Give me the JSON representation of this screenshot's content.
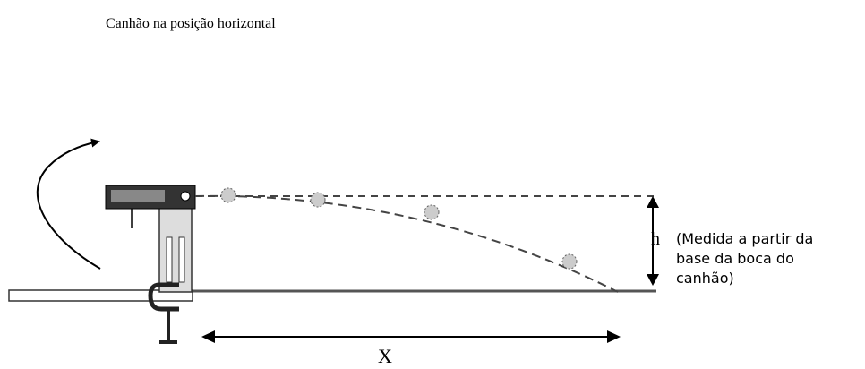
{
  "title": "Canhão na posição horizontal",
  "labels": {
    "h": "h",
    "note": [
      "(Medida a partir da",
      "base da boca do",
      "canhão)"
    ],
    "x": "X"
  }
}
